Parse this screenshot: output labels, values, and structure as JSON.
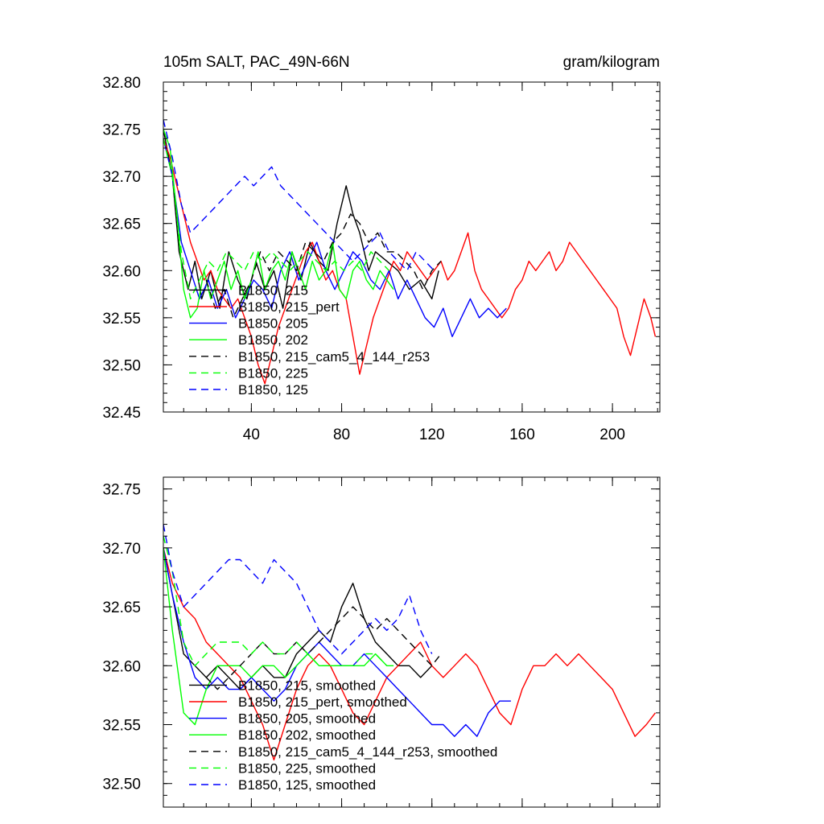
{
  "chart_data": [
    {
      "type": "line",
      "title": "105m SALT, PAC_49N-66N",
      "units": "gram/kilogram",
      "xlim": [
        1,
        221
      ],
      "ylim": [
        32.45,
        32.8
      ],
      "xticks": [
        40,
        80,
        120,
        160,
        200
      ],
      "yticks": [
        32.45,
        32.5,
        32.55,
        32.6,
        32.65,
        32.7,
        32.75,
        32.8
      ],
      "ytick_labels": [
        "32.45",
        "32.50",
        "32.55",
        "32.60",
        "32.65",
        "32.70",
        "32.75",
        "32.80"
      ],
      "legend_position": "lower-left",
      "series": [
        {
          "name": "B1850, 215",
          "color": "#000000",
          "dash": "solid",
          "x": [
            1,
            5,
            8,
            12,
            15,
            18,
            22,
            26,
            30,
            34,
            38,
            42,
            46,
            50,
            54,
            58,
            62,
            66,
            70,
            74,
            78,
            82,
            85,
            88,
            92,
            95,
            100,
            105,
            110,
            115,
            120,
            123
          ],
          "y": [
            32.75,
            32.7,
            32.62,
            32.58,
            32.61,
            32.57,
            32.6,
            32.56,
            32.62,
            32.59,
            32.57,
            32.61,
            32.58,
            32.6,
            32.56,
            32.62,
            32.59,
            32.63,
            32.61,
            32.6,
            32.65,
            32.69,
            32.66,
            32.64,
            32.6,
            32.62,
            32.61,
            32.6,
            32.58,
            32.59,
            32.57,
            32.6
          ]
        },
        {
          "name": "B1850, 215_pert",
          "color": "#ff0000",
          "dash": "solid",
          "x": [
            1,
            4,
            7,
            10,
            13,
            16,
            19,
            22,
            25,
            28,
            31,
            34,
            37,
            40,
            43,
            46,
            49,
            52,
            55,
            58,
            61,
            64,
            67,
            70,
            73,
            76,
            79,
            82,
            85,
            88,
            91,
            94,
            97,
            100,
            103,
            106,
            109,
            112,
            115,
            118,
            121,
            124,
            127,
            130,
            133,
            136,
            139,
            142,
            145,
            148,
            151,
            154,
            157,
            160,
            163,
            166,
            169,
            172,
            175,
            178,
            181,
            184,
            187,
            190,
            193,
            196,
            199,
            202,
            205,
            208,
            211,
            214,
            217,
            219
          ],
          "y": [
            32.74,
            32.72,
            32.69,
            32.66,
            32.63,
            32.61,
            32.59,
            32.6,
            32.58,
            32.57,
            32.56,
            32.57,
            32.55,
            32.53,
            32.5,
            32.48,
            32.51,
            32.54,
            32.56,
            32.58,
            32.6,
            32.62,
            32.63,
            32.61,
            32.59,
            32.6,
            32.58,
            32.57,
            32.53,
            32.49,
            32.52,
            32.55,
            32.57,
            32.59,
            32.61,
            32.6,
            32.62,
            32.61,
            32.6,
            32.59,
            32.6,
            32.61,
            32.59,
            32.6,
            32.62,
            32.64,
            32.6,
            32.58,
            32.57,
            32.56,
            32.55,
            32.56,
            32.58,
            32.59,
            32.61,
            32.6,
            32.61,
            32.62,
            32.6,
            32.61,
            32.63,
            32.62,
            32.61,
            32.6,
            32.59,
            32.58,
            32.57,
            32.56,
            32.53,
            32.51,
            32.54,
            32.57,
            32.55,
            32.53
          ]
        },
        {
          "name": "B1850, 205",
          "color": "#0000ff",
          "dash": "solid",
          "x": [
            1,
            5,
            9,
            13,
            17,
            21,
            25,
            29,
            33,
            37,
            41,
            45,
            49,
            53,
            57,
            61,
            65,
            69,
            73,
            77,
            81,
            85,
            89,
            93,
            97,
            101,
            105,
            109,
            113,
            117,
            121,
            125,
            129,
            133,
            137,
            141,
            145,
            149,
            153
          ],
          "y": [
            32.74,
            32.7,
            32.63,
            32.6,
            32.57,
            32.59,
            32.56,
            32.58,
            32.55,
            32.57,
            32.59,
            32.58,
            32.56,
            32.6,
            32.62,
            32.59,
            32.61,
            32.63,
            32.6,
            32.58,
            32.6,
            32.62,
            32.61,
            32.59,
            32.58,
            32.6,
            32.57,
            32.59,
            32.57,
            32.55,
            32.54,
            32.56,
            32.53,
            32.55,
            32.57,
            32.55,
            32.56,
            32.55,
            32.56
          ]
        },
        {
          "name": "B1850, 202",
          "color": "#00ff00",
          "dash": "solid",
          "x": [
            1,
            4,
            7,
            10,
            13,
            16,
            19,
            22,
            25,
            28,
            31,
            34,
            37,
            40,
            43,
            46,
            49,
            52,
            55,
            58,
            61,
            64,
            67,
            70,
            73,
            76,
            79,
            82,
            85,
            88,
            91,
            94,
            97,
            100,
            103
          ],
          "y": [
            32.75,
            32.73,
            32.66,
            32.58,
            32.55,
            32.56,
            32.6,
            32.57,
            32.59,
            32.61,
            32.58,
            32.6,
            32.57,
            32.59,
            32.62,
            32.58,
            32.6,
            32.61,
            32.59,
            32.62,
            32.6,
            32.58,
            32.61,
            32.59,
            32.6,
            32.63,
            32.58,
            32.57,
            32.6,
            32.61,
            32.59,
            32.58,
            32.6,
            32.59,
            32.58
          ]
        },
        {
          "name": "B1850, 215_cam5_4_144_r253",
          "color": "#000000",
          "dash": "dash",
          "x": [
            20,
            24,
            28,
            32,
            36,
            40,
            44,
            48,
            52,
            56,
            60,
            64,
            68,
            72,
            76,
            80,
            84,
            88,
            92,
            96,
            100,
            104,
            108,
            112,
            116,
            120,
            124
          ],
          "y": [
            32.59,
            32.56,
            32.58,
            32.55,
            32.57,
            32.59,
            32.62,
            32.6,
            32.62,
            32.61,
            32.6,
            32.63,
            32.62,
            32.61,
            32.63,
            32.64,
            32.66,
            32.65,
            32.63,
            32.64,
            32.62,
            32.62,
            32.61,
            32.6,
            32.58,
            32.6,
            32.61
          ]
        },
        {
          "name": "B1850, 225",
          "color": "#00ff00",
          "dash": "dash",
          "x": [
            1,
            5,
            9,
            13,
            17,
            21,
            25,
            29,
            33,
            37,
            41,
            45,
            49,
            53,
            57,
            61,
            65,
            69,
            73,
            77,
            81,
            85,
            89,
            93,
            97,
            101
          ],
          "y": [
            32.74,
            32.7,
            32.62,
            32.57,
            32.59,
            32.61,
            32.6,
            32.62,
            32.61,
            32.6,
            32.62,
            32.61,
            32.62,
            32.61,
            32.6,
            32.61,
            32.62,
            32.61,
            32.6,
            32.61,
            32.6,
            32.61,
            32.6,
            32.62,
            32.61,
            32.6
          ]
        },
        {
          "name": "B1850, 125",
          "color": "#0000ff",
          "dash": "dash",
          "x": [
            1,
            5,
            9,
            13,
            17,
            21,
            25,
            29,
            33,
            37,
            41,
            45,
            49,
            53,
            57,
            61,
            65,
            69,
            73,
            77,
            81,
            85,
            89,
            93,
            97,
            101,
            105,
            109,
            113,
            117,
            121
          ],
          "y": [
            32.76,
            32.72,
            32.67,
            32.64,
            32.65,
            32.66,
            32.67,
            32.68,
            32.69,
            32.7,
            32.69,
            32.7,
            32.71,
            32.69,
            32.68,
            32.67,
            32.66,
            32.65,
            32.64,
            32.63,
            32.62,
            32.61,
            32.62,
            32.63,
            32.64,
            32.62,
            32.61,
            32.6,
            32.62,
            32.61,
            32.6
          ]
        }
      ]
    },
    {
      "type": "line",
      "title": "",
      "xlim": [
        1,
        221
      ],
      "ylim": [
        32.48,
        32.76
      ],
      "xticks": [
        40,
        80,
        120,
        160,
        200
      ],
      "yticks": [
        32.5,
        32.55,
        32.6,
        32.65,
        32.7,
        32.75
      ],
      "ytick_labels": [
        "32.50",
        "32.55",
        "32.60",
        "32.65",
        "32.70",
        "32.75"
      ],
      "legend_position": "lower-left",
      "series": [
        {
          "name": "B1850, 215, smoothed",
          "color": "#000000",
          "dash": "solid",
          "x": [
            1,
            5,
            10,
            15,
            20,
            25,
            30,
            35,
            40,
            45,
            50,
            55,
            60,
            65,
            70,
            75,
            80,
            85,
            90,
            95,
            100,
            105,
            110,
            115,
            120
          ],
          "y": [
            32.7,
            32.66,
            32.61,
            32.6,
            32.59,
            32.6,
            32.59,
            32.58,
            32.59,
            32.6,
            32.59,
            32.59,
            32.61,
            32.62,
            32.63,
            32.62,
            32.65,
            32.67,
            32.64,
            32.62,
            32.61,
            32.6,
            32.6,
            32.59,
            32.6
          ]
        },
        {
          "name": "B1850, 215_pert, smoothed",
          "color": "#ff0000",
          "dash": "solid",
          "x": [
            1,
            5,
            10,
            15,
            20,
            25,
            30,
            35,
            40,
            45,
            50,
            55,
            60,
            65,
            70,
            75,
            80,
            85,
            90,
            95,
            100,
            105,
            110,
            115,
            120,
            125,
            130,
            135,
            140,
            145,
            150,
            155,
            160,
            165,
            170,
            175,
            180,
            185,
            190,
            195,
            200,
            205,
            210,
            215,
            219
          ],
          "y": [
            32.7,
            32.67,
            32.65,
            32.64,
            32.62,
            32.61,
            32.6,
            32.59,
            32.57,
            32.55,
            32.52,
            32.55,
            32.58,
            32.6,
            32.61,
            32.6,
            32.58,
            32.56,
            32.55,
            32.57,
            32.59,
            32.6,
            32.61,
            32.62,
            32.6,
            32.59,
            32.6,
            32.61,
            32.6,
            32.58,
            32.56,
            32.55,
            32.58,
            32.6,
            32.6,
            32.61,
            32.6,
            32.61,
            32.6,
            32.59,
            32.58,
            32.56,
            32.54,
            32.55,
            32.56
          ]
        },
        {
          "name": "B1850, 205, smoothed",
          "color": "#0000ff",
          "dash": "solid",
          "x": [
            1,
            5,
            10,
            15,
            20,
            25,
            30,
            35,
            40,
            45,
            50,
            55,
            60,
            65,
            70,
            75,
            80,
            85,
            90,
            95,
            100,
            105,
            110,
            115,
            120,
            125,
            130,
            135,
            140,
            145,
            150,
            155
          ],
          "y": [
            32.7,
            32.66,
            32.62,
            32.59,
            32.58,
            32.59,
            32.58,
            32.58,
            32.59,
            32.58,
            32.57,
            32.58,
            32.6,
            32.61,
            32.62,
            32.61,
            32.6,
            32.6,
            32.61,
            32.6,
            32.59,
            32.58,
            32.57,
            32.56,
            32.55,
            32.55,
            32.54,
            32.55,
            32.54,
            32.56,
            32.57,
            32.57
          ]
        },
        {
          "name": "B1850, 202, smoothed",
          "color": "#00ff00",
          "dash": "solid",
          "x": [
            1,
            5,
            10,
            15,
            20,
            25,
            30,
            35,
            40,
            45,
            50,
            55,
            60,
            65,
            70,
            75,
            80,
            85,
            90,
            95,
            100,
            103
          ],
          "y": [
            32.7,
            32.63,
            32.56,
            32.55,
            32.58,
            32.6,
            32.6,
            32.6,
            32.59,
            32.6,
            32.6,
            32.59,
            32.6,
            32.61,
            32.6,
            32.6,
            32.6,
            32.6,
            32.6,
            32.61,
            32.6,
            32.6
          ]
        },
        {
          "name": "B1850, 215_cam5_4_144_r253, smoothed",
          "color": "#000000",
          "dash": "dash",
          "x": [
            20,
            25,
            30,
            35,
            40,
            45,
            50,
            55,
            60,
            65,
            70,
            75,
            80,
            85,
            90,
            95,
            100,
            105,
            110,
            115,
            120,
            124
          ],
          "y": [
            32.59,
            32.58,
            32.59,
            32.6,
            32.61,
            32.62,
            32.61,
            32.61,
            32.62,
            32.61,
            32.62,
            32.63,
            32.64,
            32.65,
            32.64,
            32.63,
            32.64,
            32.63,
            32.62,
            32.61,
            32.6,
            32.61
          ]
        },
        {
          "name": "B1850, 225, smoothed",
          "color": "#00ff00",
          "dash": "dash",
          "x": [
            1,
            5,
            10,
            15,
            20,
            25,
            30,
            35,
            40,
            45,
            50,
            55,
            60,
            65,
            70,
            75,
            80,
            85,
            90,
            95,
            100
          ],
          "y": [
            32.71,
            32.68,
            32.62,
            32.6,
            32.61,
            32.62,
            32.62,
            32.62,
            32.61,
            32.62,
            32.61,
            32.61,
            32.62,
            32.61,
            32.6,
            32.6,
            32.6,
            32.6,
            32.61,
            32.61,
            32.6
          ]
        },
        {
          "name": "B1850, 125, smoothed",
          "color": "#0000ff",
          "dash": "dash",
          "x": [
            1,
            5,
            10,
            15,
            20,
            25,
            30,
            35,
            40,
            45,
            50,
            55,
            60,
            65,
            70,
            75,
            80,
            85,
            90,
            95,
            100,
            105,
            110,
            115,
            120
          ],
          "y": [
            32.72,
            32.68,
            32.65,
            32.66,
            32.67,
            32.68,
            32.69,
            32.69,
            32.68,
            32.67,
            32.69,
            32.68,
            32.67,
            32.65,
            32.63,
            32.62,
            32.61,
            32.62,
            32.63,
            32.64,
            32.63,
            32.64,
            32.66,
            32.63,
            32.61
          ]
        }
      ]
    }
  ]
}
